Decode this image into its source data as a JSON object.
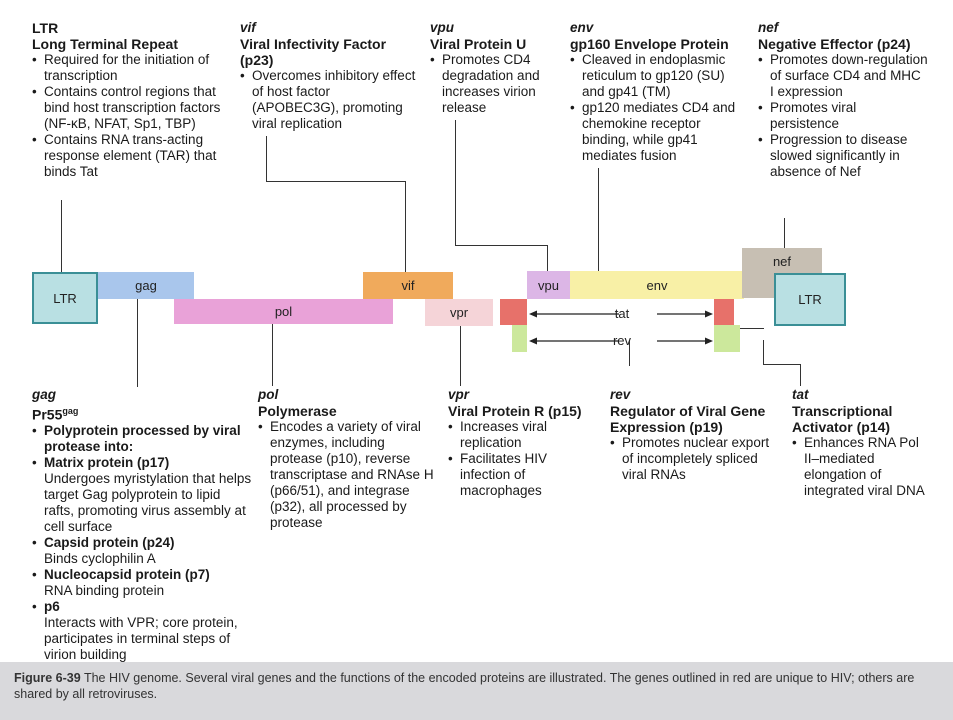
{
  "top": {
    "ltr": {
      "gene": "LTR",
      "title": "Long Terminal Repeat",
      "bullets": [
        "Required for the initiation of transcription",
        "Contains control regions that bind host transcription factors (NF-κB, NFAT, Sp1, TBP)",
        "Contains RNA trans-acting response element (TAR) that binds Tat"
      ]
    },
    "vif": {
      "gene": "vif",
      "title": "Viral Infectivity Factor (p23)",
      "bullets": [
        "Overcomes inhibitory effect of host factor (APOBEC3G), promoting viral replication"
      ]
    },
    "vpu": {
      "gene": "vpu",
      "title": "Viral Protein U",
      "bullets": [
        "Promotes CD4 degradation and increases virion release"
      ]
    },
    "env": {
      "gene": "env",
      "title": "gp160 Envelope Protein",
      "bullets": [
        "Cleaved in endoplasmic reticulum to gp120 (SU) and gp41 (TM)",
        "gp120 mediates CD4 and chemokine receptor binding, while gp41 mediates fusion"
      ]
    },
    "nef": {
      "gene": "nef",
      "title": "Negative Effector",
      "title_extra": "(p24)",
      "bullets": [
        "Promotes down-regulation of surface CD4 and MHC I expression",
        "Promotes viral persistence",
        "Progression to disease slowed significantly in absence of Nef"
      ]
    }
  },
  "genome": {
    "ltr_left": "LTR",
    "gag": "gag",
    "pol": "pol",
    "vif": "vif",
    "vpr": "vpr",
    "vpu": "vpu",
    "env": "env",
    "tat": "tat",
    "rev": "rev",
    "nef": "nef",
    "ltr_right": "LTR",
    "colors": {
      "ltr": "#b9e0e3",
      "ltr_border": "#3a8f96",
      "gag": "#a9c6ec",
      "pol": "#e9a2d8",
      "vif": "#f0aa5c",
      "vpr": "#f5d4d8",
      "vpu": "#dcb6e6",
      "env": "#f8f0a6",
      "nef": "#c7bfb3",
      "red_exon": "#e7716a",
      "green_exon": "#cce89c"
    }
  },
  "bottom": {
    "gag": {
      "gene": "gag",
      "precursor": "Pr55",
      "precursor_sup": "gag",
      "items": [
        {
          "head": "Polyprotein processed by viral protease into:",
          "body": ""
        },
        {
          "head": "Matrix protein (p17)",
          "body": "Undergoes myristylation that helps target Gag polyprotein to lipid rafts, promoting virus assembly at cell surface"
        },
        {
          "head": "Capsid protein (p24)",
          "body": "Binds cyclophilin A"
        },
        {
          "head": "Nucleocapsid protein (p7)",
          "body": "RNA binding protein"
        },
        {
          "head": "p6",
          "body": "Interacts with VPR; core protein, participates in terminal steps of virion building"
        }
      ]
    },
    "pol": {
      "gene": "pol",
      "title": "Polymerase",
      "bullets": [
        "Encodes a variety of viral enzymes, including protease (p10), reverse transcriptase and RNAse H (p66/51), and integrase (p32), all processed by protease"
      ]
    },
    "vpr": {
      "gene": "vpr",
      "title": "Viral Protein R (p15)",
      "bullets": [
        "Increases viral replication",
        "Facilitates HIV infection of macrophages"
      ]
    },
    "rev": {
      "gene": "rev",
      "title": "Regulator of Viral Gene Expression (p19)",
      "bullets": [
        "Promotes nuclear export of incompletely spliced viral RNAs"
      ]
    },
    "tat": {
      "gene": "tat",
      "title": "Transcriptional Activator (p14)",
      "bullets": [
        "Enhances RNA Pol II–mediated elongation of integrated viral DNA"
      ]
    }
  },
  "caption": {
    "label": "Figure 6-39",
    "text": "The HIV genome. Several viral genes and the functions of the encoded proteins are illustrated. The genes outlined in red are unique to HIV; others are shared by all retroviruses."
  }
}
